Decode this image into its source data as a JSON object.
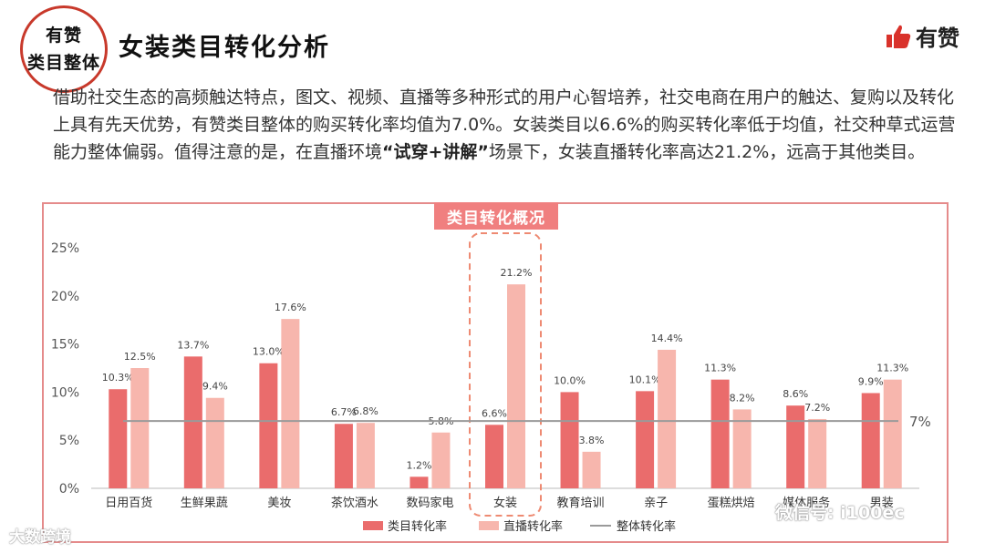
{
  "header": {
    "badge_line1": "有赞",
    "badge_line2": "类目整体",
    "title": "女装类目转化分析",
    "brand": "有赞"
  },
  "intro": {
    "part1": "借助社交生态的高频触达特点，图文、视频、直播等多种形式的用户心智培养，社交电商在用户的触达、复购以及转化上具有先天优势，有赞类目整体的购买转化率均值为7.0%。女装类目以6.6%的购买转化率低于均值，社交种草式运营能力整体偏弱。值得注意的是，在直播环境",
    "highlight": "“试穿+讲解”",
    "part2": "场景下，女装直播转化率高达21.2%，远高于其他类目。"
  },
  "watermarks": {
    "left": "大数跨境",
    "right": "微信号: i100ec"
  },
  "chart_data": {
    "type": "bar",
    "title": "类目转化概况",
    "categories": [
      "日用百货",
      "生鲜果蔬",
      "美妆",
      "茶饮酒水",
      "数码家电",
      "女装",
      "教育培训",
      "亲子",
      "蛋糕烘焙",
      "媒体服务",
      "男装"
    ],
    "series": [
      {
        "name": "类目转化率",
        "values": [
          10.3,
          13.7,
          13.0,
          6.7,
          1.2,
          6.6,
          10.0,
          10.1,
          11.3,
          8.6,
          9.9
        ],
        "labels": [
          "10.3%",
          "13.7%",
          "13.0%",
          "6.7%",
          "1.2%",
          "6.6%",
          "10.0%",
          "10.1%",
          "11.3%",
          "8.6%",
          "9.9%"
        ],
        "color": "#ea6c6c"
      },
      {
        "name": "直播转化率",
        "values": [
          12.5,
          9.4,
          17.6,
          6.8,
          5.8,
          21.2,
          3.8,
          14.4,
          8.2,
          7.2,
          11.3
        ],
        "labels": [
          "12.5%",
          "9.4%",
          "17.6%",
          "6.8%",
          "5.8%",
          "21.2%",
          "3.8%",
          "14.4%",
          "8.2%",
          "7.2%",
          "11.3%"
        ],
        "color": "#f7b6ad"
      }
    ],
    "reference_line": {
      "name": "整体转化率",
      "value": 7.0,
      "label": "7%",
      "color": "#9a9a9a"
    },
    "highlight_category": "女装",
    "yticks": [
      "0%",
      "5%",
      "10%",
      "15%",
      "20%",
      "25%"
    ],
    "ylim": [
      0,
      25
    ],
    "grid": false,
    "legend_position": "bottom"
  }
}
